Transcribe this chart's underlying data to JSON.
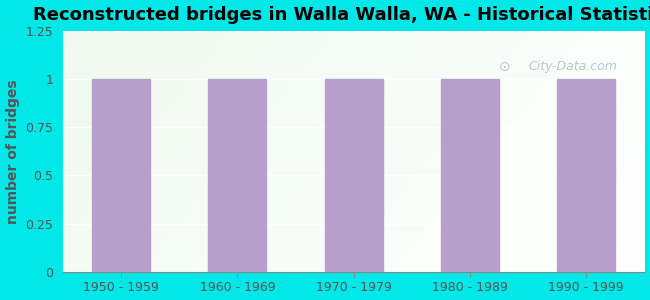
{
  "title": "Reconstructed bridges in Walla Walla, WA - Historical Statistics",
  "categories": [
    "1950 - 1959",
    "1960 - 1969",
    "1970 - 1979",
    "1980 - 1989",
    "1990 - 1999"
  ],
  "values": [
    1,
    1,
    1,
    1,
    1
  ],
  "bar_color": "#b8a0cc",
  "bar_edge_color": "#b8a0cc",
  "ylabel": "number of bridges",
  "ylim": [
    0,
    1.25
  ],
  "yticks": [
    0,
    0.25,
    0.5,
    0.75,
    1,
    1.25
  ],
  "background_color": "#00e8e8",
  "title_fontsize": 13,
  "ylabel_fontsize": 10,
  "ylabel_color": "#555555",
  "tick_color": "#555555",
  "watermark_text": "City-Data.com",
  "watermark_color": "#a0b0bc",
  "watermark_alpha": 0.7
}
